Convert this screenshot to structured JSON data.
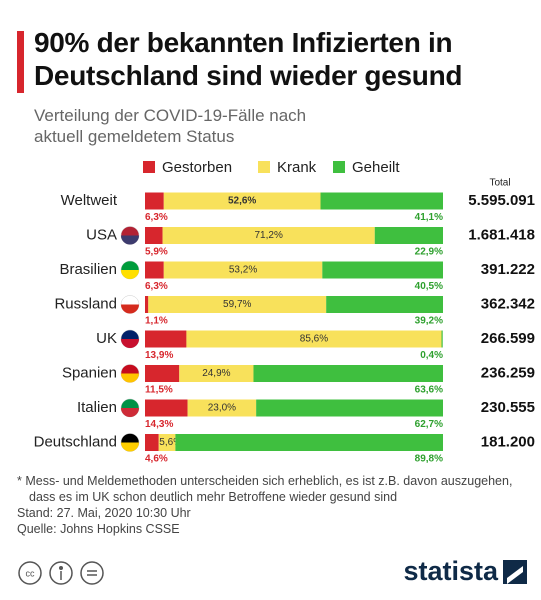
{
  "chart_data": {
    "type": "stacked_bar_horizontal",
    "title": "90% der bekannten Infizierten in Deutschland sind wieder gesund",
    "subtitle": "Verteilung der COVID-19-Fälle nach aktuell gemeldetem Status",
    "categories": [
      "Weltweit",
      "USA",
      "Brasilien",
      "Russland",
      "UK",
      "Spanien",
      "Italien",
      "Deutschland"
    ],
    "xlim": [
      0,
      100
    ],
    "series": [
      {
        "name": "Gestorben",
        "color": "#d7262d",
        "values": [
          6.3,
          5.9,
          6.3,
          1.1,
          13.9,
          11.5,
          14.3,
          4.6
        ],
        "value_labels": [
          "6,3%",
          "5,9%",
          "6,3%",
          "1,1%",
          "13,9%",
          "11,5%",
          "14,3%",
          "4,6%"
        ]
      },
      {
        "name": "Krank",
        "color": "#f8e15b",
        "values": [
          52.6,
          71.2,
          53.2,
          59.7,
          85.6,
          24.9,
          23.0,
          5.6
        ],
        "value_labels": [
          "52,6%",
          "71,2%",
          "53,2%",
          "59,7%",
          "85,6%",
          "24,9%",
          "23,0%",
          "5,6%"
        ]
      },
      {
        "name": "Geheilt",
        "color": "#3fbf3f",
        "values": [
          41.1,
          22.9,
          40.5,
          39.2,
          0.4,
          63.6,
          62.7,
          89.8
        ],
        "value_labels": [
          "41,1%",
          "22,9%",
          "40,5%",
          "39,2%",
          "0,4%",
          "63,6%",
          "62,7%",
          "89,8%"
        ]
      }
    ],
    "totals": {
      "name": "Total",
      "values": [
        5595091,
        1681418,
        391222,
        362342,
        266599,
        236259,
        230555,
        181200
      ],
      "value_labels": [
        "5.595.091",
        "1.681.418",
        "391.222",
        "362.342",
        "266.599",
        "236.259",
        "230.555",
        "181.200"
      ]
    },
    "footnote": "* Mess- und Meldemethoden unterscheiden sich erheblich, es ist z.B. davon auszugehen, dass es im UK schon deutlich mehr Betroffene wieder gesund sind",
    "date": "Stand: 27. Mai, 2020 10:30 Uhr",
    "source": "Quelle: Johns Hopkins CSSE",
    "brand": "statista"
  }
}
